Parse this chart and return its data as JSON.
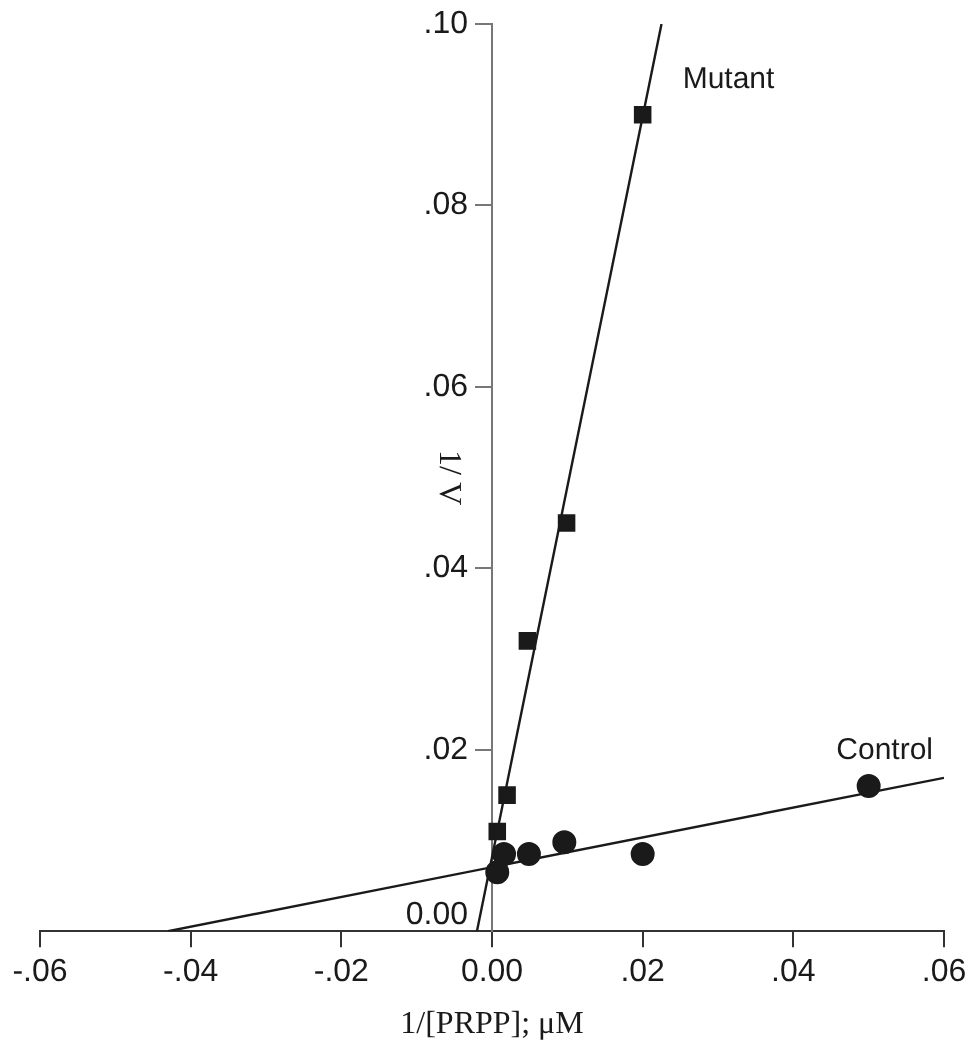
{
  "chart_data": {
    "type": "scatter",
    "xlabel": "1/[PRPP]; μM",
    "ylabel": "1/ V",
    "xlim": [
      -0.06,
      0.06
    ],
    "ylim": [
      0,
      0.1
    ],
    "xticks": [
      {
        "value": -0.06,
        "label": "-.06"
      },
      {
        "value": -0.04,
        "label": "-.04"
      },
      {
        "value": -0.02,
        "label": "-.02"
      },
      {
        "value": 0,
        "label": "0.00"
      },
      {
        "value": 0.02,
        "label": ".02"
      },
      {
        "value": 0.04,
        "label": ".04"
      },
      {
        "value": 0.06,
        "label": ".06"
      }
    ],
    "yticks": [
      {
        "value": 0,
        "label": "0.00"
      },
      {
        "value": 0.02,
        "label": ".02"
      },
      {
        "value": 0.04,
        "label": ".04"
      },
      {
        "value": 0.06,
        "label": ".06"
      },
      {
        "value": 0.08,
        "label": ".08"
      },
      {
        "value": 0.1,
        "label": ".10"
      }
    ],
    "grid": false,
    "legend": false,
    "series": [
      {
        "name": "Mutant",
        "marker": "square",
        "color": "#1a1a1a",
        "x": [
          0.0007,
          0.002,
          0.0047,
          0.0099,
          0.02
        ],
        "values": [
          0.011,
          0.015,
          0.032,
          0.045,
          0.09
        ]
      },
      {
        "name": "Control",
        "marker": "circle",
        "color": "#1a1a1a",
        "x": [
          0.0007,
          0.0016,
          0.0049,
          0.0096,
          0.02,
          0.05
        ],
        "values": [
          0.0065,
          0.0085,
          0.0085,
          0.0098,
          0.0085,
          0.016
        ]
      },
      {
        "type": "line",
        "marker": "none",
        "color": "#1a1a1a",
        "x": [
          -0.002,
          0.0225
        ],
        "values": [
          0,
          0.1
        ]
      },
      {
        "type": "line",
        "marker": "none",
        "color": "#1a1a1a",
        "x": [
          -0.043,
          0.06
        ],
        "values": [
          0,
          0.0169
        ]
      }
    ]
  }
}
